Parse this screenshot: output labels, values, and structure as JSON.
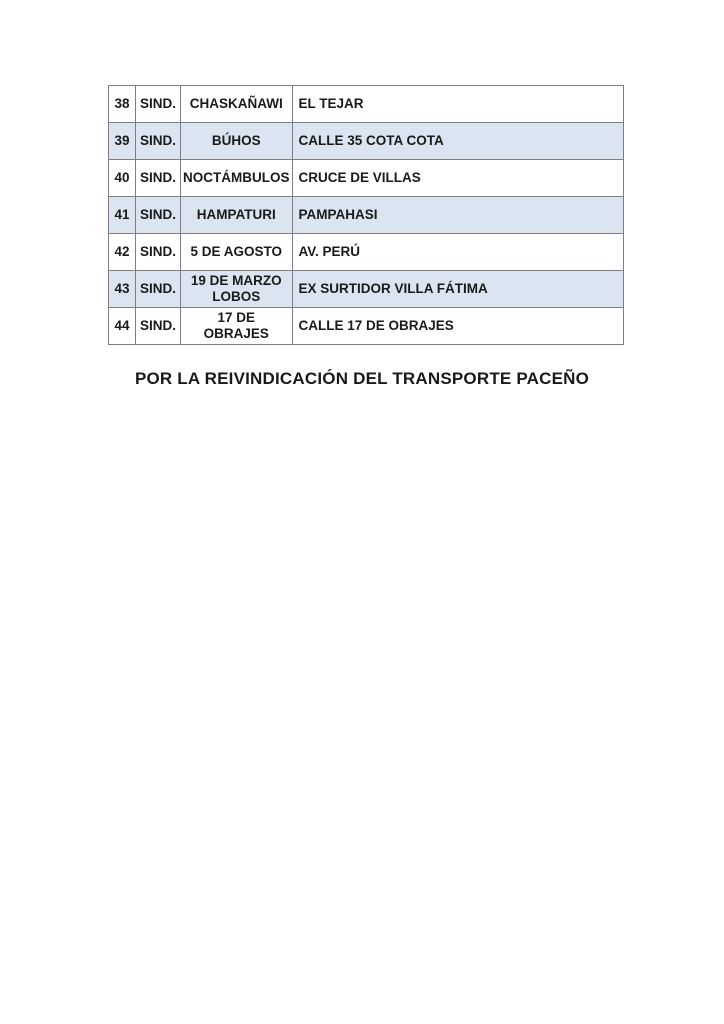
{
  "document": {
    "table": {
      "rows": [
        {
          "num": "38",
          "sind": "SIND.",
          "name": "CHASKAÑAWI",
          "location": "EL TEJAR",
          "shaded": false
        },
        {
          "num": "39",
          "sind": "SIND.",
          "name": "BÚHOS",
          "location": "CALLE 35 COTA COTA",
          "shaded": true
        },
        {
          "num": "40",
          "sind": "SIND.",
          "name": "NOCTÁMBULOS",
          "location": "CRUCE DE VILLAS",
          "shaded": false
        },
        {
          "num": "41",
          "sind": "SIND.",
          "name": "HAMPATURI",
          "location": "PAMPAHASI",
          "shaded": true
        },
        {
          "num": "42",
          "sind": "SIND.",
          "name": "5 DE AGOSTO",
          "location": "AV. PERÚ",
          "shaded": false
        },
        {
          "num": "43",
          "sind": "SIND.",
          "name": "19 DE MARZO LOBOS",
          "location": "EX SURTIDOR VILLA FÁTIMA",
          "shaded": true
        },
        {
          "num": "44",
          "sind": "SIND.",
          "name": "17 DE OBRAJES",
          "location": "CALLE 17 DE OBRAJES",
          "shaded": false
        }
      ]
    },
    "slogan": "POR LA REIVINDICACIÓN DEL TRANSPORTE PACEÑO"
  },
  "colors": {
    "row_shade": "#dbe5f1",
    "border": "#7f7f7f",
    "text": "#1a1a1a",
    "page_background": "#ffffff"
  }
}
